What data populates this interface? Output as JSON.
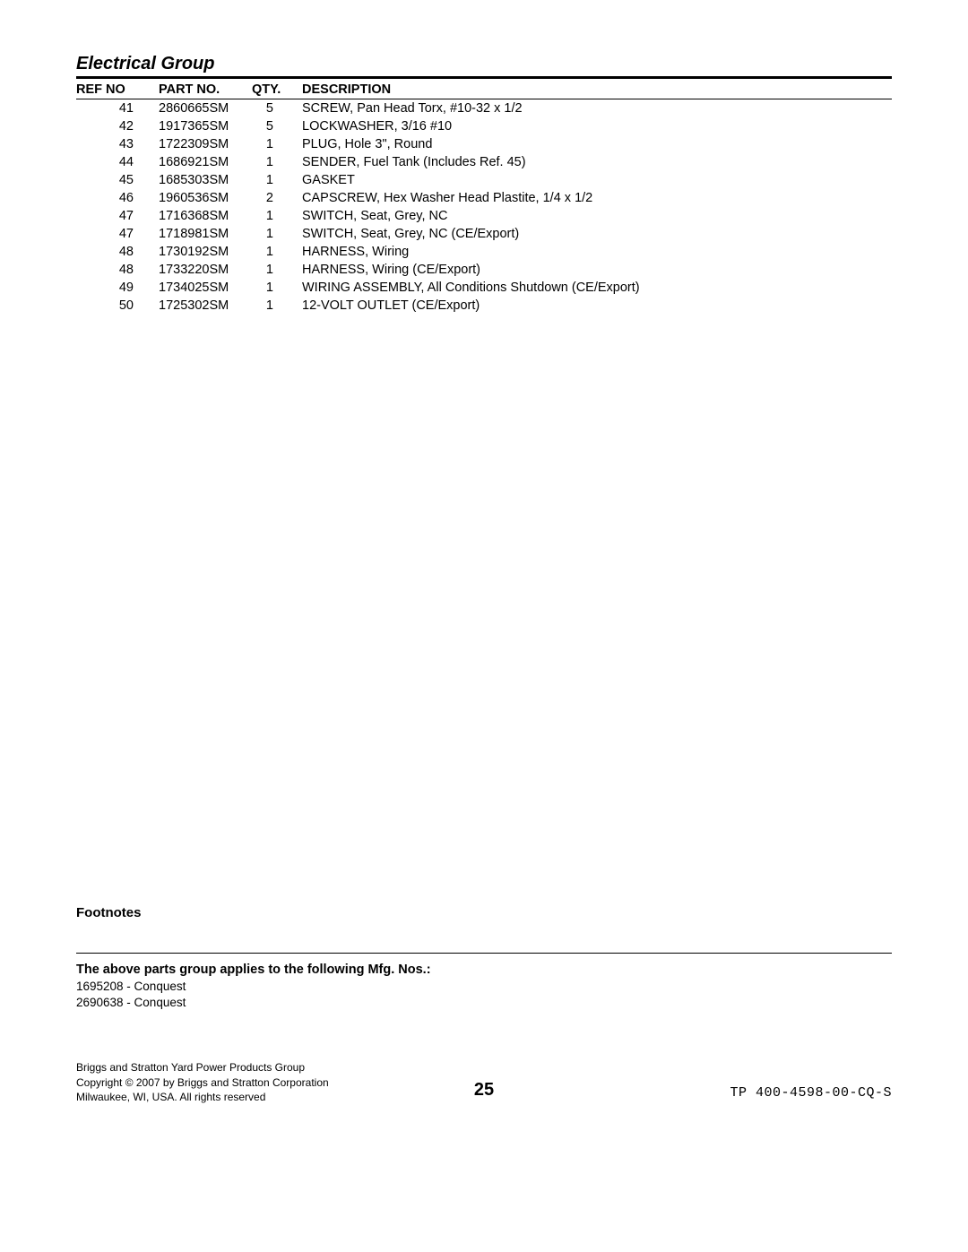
{
  "section_title": "Electrical Group",
  "columns": [
    "REF NO",
    "PART NO.",
    "QTY.",
    "DESCRIPTION"
  ],
  "rows": [
    {
      "ref": "41",
      "part": "2860665SM",
      "qty": "5",
      "desc": "SCREW, Pan Head Torx, #10-32 x 1/2"
    },
    {
      "ref": "42",
      "part": "1917365SM",
      "qty": "5",
      "desc": "LOCKWASHER, 3/16 #10"
    },
    {
      "ref": "43",
      "part": "1722309SM",
      "qty": "1",
      "desc": "PLUG, Hole 3\", Round"
    },
    {
      "ref": "44",
      "part": "1686921SM",
      "qty": "1",
      "desc": "SENDER, Fuel Tank (Includes Ref. 45)"
    },
    {
      "ref": "45",
      "part": "1685303SM",
      "qty": "1",
      "desc": "GASKET"
    },
    {
      "ref": "46",
      "part": "1960536SM",
      "qty": "2",
      "desc": "CAPSCREW, Hex Washer Head Plastite, 1/4 x 1/2"
    },
    {
      "ref": "47",
      "part": "1716368SM",
      "qty": "1",
      "desc": "SWITCH, Seat, Grey, NC"
    },
    {
      "ref": "47",
      "part": "1718981SM",
      "qty": "1",
      "desc": "SWITCH, Seat, Grey, NC (CE/Export)"
    },
    {
      "ref": "48",
      "part": "1730192SM",
      "qty": "1",
      "desc": "HARNESS, Wiring"
    },
    {
      "ref": "48",
      "part": "1733220SM",
      "qty": "1",
      "desc": "HARNESS, Wiring (CE/Export)"
    },
    {
      "ref": "49",
      "part": "1734025SM",
      "qty": "1",
      "desc": "WIRING ASSEMBLY, All Conditions Shutdown (CE/Export)"
    },
    {
      "ref": "50",
      "part": "1725302SM",
      "qty": "1",
      "desc": "12-VOLT OUTLET (CE/Export)"
    }
  ],
  "footnotes_label": "Footnotes",
  "mfg_title": "The above parts group applies to the following Mfg. Nos.:",
  "mfg_items": [
    "1695208 - Conquest",
    "2690638 - Conquest"
  ],
  "footer_left": [
    "Briggs and Stratton Yard Power Products Group",
    "Copyright © 2007 by Briggs and Stratton Corporation",
    "Milwaukee, WI, USA. All rights reserved"
  ],
  "page_number": "25",
  "doc_code": "TP 400-4598-00-CQ-S"
}
